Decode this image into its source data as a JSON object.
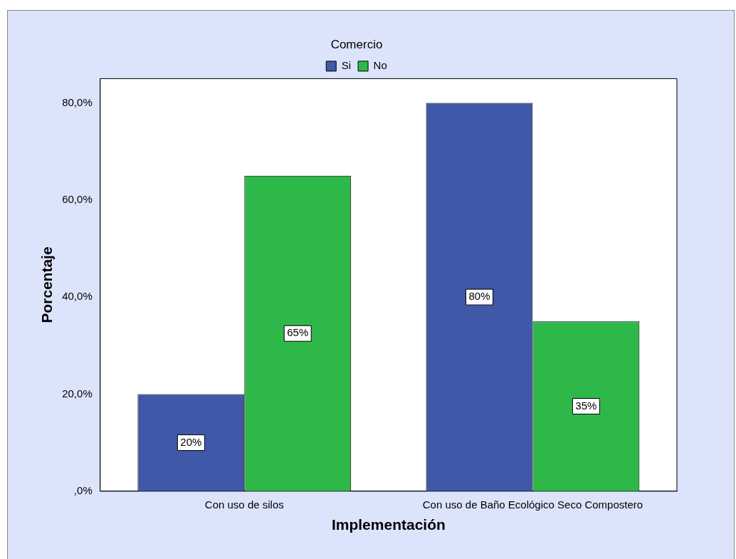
{
  "chart_data": {
    "type": "bar",
    "xlabel": "Implementación",
    "ylabel": "Porcentaje",
    "legend_title": "Comercio",
    "legend": "top",
    "categories": [
      "Con uso de silos",
      "Con uso de Baño Ecológico Seco Compostero"
    ],
    "series": [
      {
        "name": "Si",
        "color": "#3f58a8",
        "values": [
          20,
          80
        ],
        "value_labels": [
          "20%",
          "80%"
        ]
      },
      {
        "name": "No",
        "color": "#2fb84a",
        "values": [
          65,
          35
        ],
        "value_labels": [
          "65%",
          "35%"
        ]
      }
    ],
    "ylim": [
      0,
      85
    ],
    "yticks": [
      {
        "value": 0,
        "label": ",0%"
      },
      {
        "value": 20,
        "label": "20,0%"
      },
      {
        "value": 40,
        "label": "40,0%"
      },
      {
        "value": 60,
        "label": "60,0%"
      },
      {
        "value": 80,
        "label": "80,0%"
      }
    ],
    "grid": false
  }
}
